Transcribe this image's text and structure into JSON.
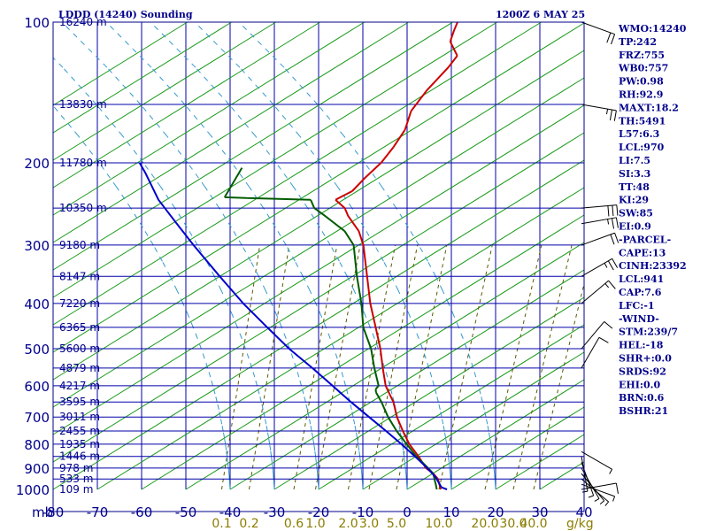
{
  "chart_data": {
    "type": "line",
    "title": "LDDD (14240) Sounding",
    "time_label": "1200Z  6 MAY 25",
    "pressure_unit": "mb",
    "pressure_ticks": [
      100,
      200,
      300,
      400,
      500,
      600,
      700,
      800,
      900,
      1000
    ],
    "temperature_ticks": [
      -80,
      -70,
      -60,
      -50,
      -40,
      -30,
      -20,
      -10,
      0,
      10,
      20,
      30,
      40
    ],
    "mixing_ratio_unit": "g/kg",
    "mixing_ratio_ticks": [
      {
        "label": "0.1",
        "t1000": -41.9
      },
      {
        "label": "0.2",
        "t1000": -35.7
      },
      {
        "label": "0.6",
        "t1000": -25.6
      },
      {
        "label": "1.0",
        "t1000": -20.7
      },
      {
        "label": "2.0",
        "t1000": -13.3
      },
      {
        "label": "3.0",
        "t1000": -8.6
      },
      {
        "label": "5.0",
        "t1000": -2.4
      },
      {
        "label": "10.0",
        "t1000": 7.2
      },
      {
        "label": "20.0",
        "t1000": 17.6
      },
      {
        "label": "30.0",
        "t1000": 24.0
      },
      {
        "label": "40.0",
        "t1000": 28.6
      }
    ],
    "height_labels": [
      {
        "p": 100,
        "label": "16240 m"
      },
      {
        "p": 150,
        "label": "13830 m"
      },
      {
        "p": 200,
        "label": "11780 m"
      },
      {
        "p": 250,
        "label": "10350 m"
      },
      {
        "p": 300,
        "label": "9180 m"
      },
      {
        "p": 350,
        "label": "8147 m"
      },
      {
        "p": 400,
        "label": "7220 m"
      },
      {
        "p": 450,
        "label": "6365 m"
      },
      {
        "p": 500,
        "label": "5600 m"
      },
      {
        "p": 550,
        "label": "4879 m"
      },
      {
        "p": 600,
        "label": "4217 m"
      },
      {
        "p": 650,
        "label": "3595 m"
      },
      {
        "p": 700,
        "label": "3011 m"
      },
      {
        "p": 750,
        "label": "2455 m"
      },
      {
        "p": 800,
        "label": "1935 m"
      },
      {
        "p": 850,
        "label": "1446 m"
      },
      {
        "p": 900,
        "label": "978 m"
      },
      {
        "p": 950,
        "label": "533 m"
      },
      {
        "p": 1000,
        "label": "109 m"
      }
    ],
    "series": [
      {
        "role": "temperature",
        "color": "#cc0000",
        "points": [
          [
            1016,
            11.4
          ],
          [
            1000,
            7.6
          ],
          [
            975,
            6.6
          ],
          [
            950,
            5.6
          ],
          [
            925,
            3.8
          ],
          [
            900,
            1.4
          ],
          [
            850,
            -1.8
          ],
          [
            800,
            -5.5
          ],
          [
            750,
            -8.7
          ],
          [
            700,
            -11.9
          ],
          [
            650,
            -14.7
          ],
          [
            615,
            -17.4
          ],
          [
            600,
            -18.6
          ],
          [
            550,
            -21.6
          ],
          [
            500,
            -24.7
          ],
          [
            450,
            -28.6
          ],
          [
            400,
            -33.0
          ],
          [
            350,
            -37.3
          ],
          [
            300,
            -42.3
          ],
          [
            280,
            -45.2
          ],
          [
            260,
            -49.6
          ],
          [
            250,
            -51.4
          ],
          [
            240,
            -54.6
          ],
          [
            230,
            -52.0
          ],
          [
            215,
            -50.8
          ],
          [
            200,
            -49.2
          ],
          [
            185,
            -48.5
          ],
          [
            170,
            -48.2
          ],
          [
            155,
            -49.3
          ],
          [
            140,
            -48.5
          ],
          [
            125,
            -46.7
          ],
          [
            118,
            -46.2
          ],
          [
            110,
            -49.7
          ],
          [
            104,
            -50.3
          ],
          [
            100,
            -50.6
          ]
        ]
      },
      {
        "role": "dewpoint",
        "color": "#005c00",
        "points": [
          [
            1016,
            10.0
          ],
          [
            1000,
            6.7
          ],
          [
            975,
            5.8
          ],
          [
            950,
            4.8
          ],
          [
            925,
            3.8
          ],
          [
            900,
            1.9
          ],
          [
            850,
            -2.3
          ],
          [
            800,
            -6.1
          ],
          [
            750,
            -10.1
          ],
          [
            700,
            -13.9
          ],
          [
            650,
            -17.4
          ],
          [
            620,
            -19.9
          ],
          [
            610,
            -20.4
          ],
          [
            600,
            -20.2
          ],
          [
            550,
            -23.5
          ],
          [
            500,
            -26.8
          ],
          [
            450,
            -31.4
          ],
          [
            400,
            -35.0
          ],
          [
            350,
            -39.6
          ],
          [
            300,
            -44.5
          ],
          [
            280,
            -48.4
          ],
          [
            260,
            -54.8
          ],
          [
            250,
            -58.3
          ],
          [
            240,
            -60.2
          ],
          [
            238,
            -75.0
          ],
          [
            237,
            -80.0
          ],
          [
            205,
            -80.0
          ]
        ]
      },
      {
        "role": "parcel",
        "color": "#0000cc",
        "points": [
          [
            1016,
            11.4
          ],
          [
            990,
            7.5
          ],
          [
            941,
            4.8
          ],
          [
            900,
            1.7
          ],
          [
            850,
            -2.6
          ],
          [
            800,
            -7.3
          ],
          [
            750,
            -12.5
          ],
          [
            700,
            -18.2
          ],
          [
            650,
            -24.3
          ],
          [
            600,
            -30.6
          ],
          [
            550,
            -37.5
          ],
          [
            500,
            -45.3
          ],
          [
            450,
            -53.1
          ],
          [
            400,
            -61.7
          ],
          [
            350,
            -70.6
          ],
          [
            300,
            -80.7
          ],
          [
            270,
            -87.3
          ],
          [
            240,
            -94.6
          ],
          [
            210,
            -101.2
          ],
          [
            200,
            -103.8
          ]
        ]
      }
    ],
    "wind_barbs": [
      {
        "p": 1000,
        "dir": 260,
        "kt": 10
      },
      {
        "p": 975,
        "dir": 290,
        "kt": 5
      },
      {
        "p": 950,
        "dir": 310,
        "kt": 5
      },
      {
        "p": 925,
        "dir": 320,
        "kt": 5
      },
      {
        "p": 900,
        "dir": 330,
        "kt": 5
      },
      {
        "p": 875,
        "dir": 340,
        "kt": 5
      },
      {
        "p": 850,
        "dir": 350,
        "kt": 5
      },
      {
        "p": 830,
        "dir": 300,
        "kt": 5
      },
      {
        "p": 550,
        "dir": 210,
        "kt": 10
      },
      {
        "p": 500,
        "dir": 220,
        "kt": 10
      },
      {
        "p": 400,
        "dir": 230,
        "kt": 15
      },
      {
        "p": 350,
        "dir": 240,
        "kt": 25
      },
      {
        "p": 300,
        "dir": 250,
        "kt": 20
      },
      {
        "p": 270,
        "dir": 260,
        "kt": 25
      },
      {
        "p": 250,
        "dir": 265,
        "kt": 30
      },
      {
        "p": 150,
        "dir": 280,
        "kt": 25
      },
      {
        "p": 100,
        "dir": 290,
        "kt": 20
      }
    ]
  },
  "indices": [
    "WMO:14240",
    "TP:242",
    "FRZ:755",
    "WB0:757",
    "PW:0.98",
    "RH:92.9",
    "MAXT:18.2",
    "TH:5491",
    "L57:6.3",
    "LCL:970",
    "LI:7.5",
    "SI:3.3",
    "TT:48",
    "KI:29",
    "SW:85",
    "EI:0.9",
    "-PARCEL-",
    "CAPE:13",
    "CINH:23392",
    "LCL:941",
    "CAP:7.6",
    "LFC:-1",
    "-WIND-",
    "STM:239/7",
    "HEL:-18",
    "SHR+:0.0",
    "SRDS:92",
    "EHI:0.0",
    "BRN:0.6",
    "BSHR:21"
  ]
}
